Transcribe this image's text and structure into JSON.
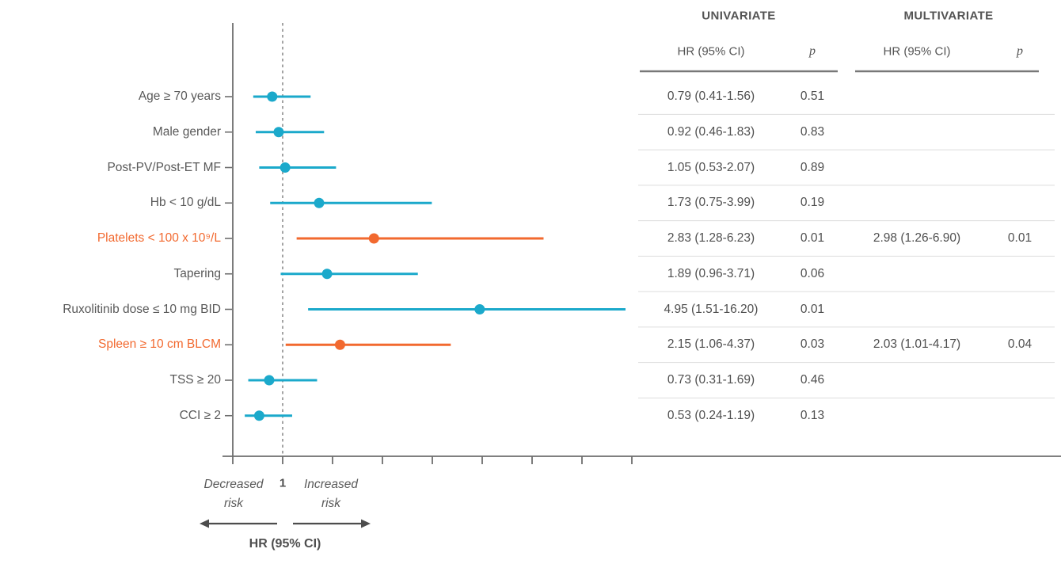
{
  "table": {
    "univariate_title": "UNIVARIATE",
    "multivariate_title": "MULTIVARIATE",
    "hr_ci_header": "HR (95% CI)",
    "p_header": "p"
  },
  "axis": {
    "reference_value": "1",
    "decreased_label": "Decreased risk",
    "increased_label": "Increased risk",
    "xlabel": "HR (95% CI)"
  },
  "colors": {
    "teal": "#1BA9CB",
    "orange": "#F2692F",
    "text_gray": "#595959",
    "axis_gray": "#6E6E6E",
    "separator_gray": "#DDDDDD",
    "header_line_gray": "#787878",
    "arrow_gray": "#4D4D4D",
    "dash_gray": "#999999"
  },
  "chart_data": {
    "type": "forest",
    "xlabel": "HR (95% CI)",
    "xlim": [
      0,
      8.4
    ],
    "x_ticks": [
      0,
      1,
      2,
      3,
      4,
      5,
      6,
      7,
      8
    ],
    "reference_line": 1,
    "grid": false,
    "legend": "none",
    "rows": [
      {
        "label": "Age ≥ 70 years",
        "highlight": false,
        "univariate": {
          "hr": 0.79,
          "ci_low": 0.41,
          "ci_high": 1.56,
          "hr_text": "0.79 (0.41-1.56)",
          "p": "0.51"
        },
        "multivariate": null
      },
      {
        "label": "Male gender",
        "highlight": false,
        "univariate": {
          "hr": 0.92,
          "ci_low": 0.46,
          "ci_high": 1.83,
          "hr_text": "0.92 (0.46-1.83)",
          "p": "0.83"
        },
        "multivariate": null
      },
      {
        "label": "Post-PV/Post-ET MF",
        "highlight": false,
        "univariate": {
          "hr": 1.05,
          "ci_low": 0.53,
          "ci_high": 2.07,
          "hr_text": "1.05 (0.53-2.07)",
          "p": "0.89"
        },
        "multivariate": null
      },
      {
        "label": "Hb < 10 g/dL",
        "highlight": false,
        "univariate": {
          "hr": 1.73,
          "ci_low": 0.75,
          "ci_high": 3.99,
          "hr_text": "1.73 (0.75-3.99)",
          "p": "0.19"
        },
        "multivariate": null
      },
      {
        "label": "Platelets < 100 x 10⁹/L",
        "highlight": true,
        "univariate": {
          "hr": 2.83,
          "ci_low": 1.28,
          "ci_high": 6.23,
          "hr_text": "2.83 (1.28-6.23)",
          "p": "0.01"
        },
        "multivariate": {
          "hr": 2.98,
          "ci_low": 1.26,
          "ci_high": 6.9,
          "hr_text": "2.98 (1.26-6.90)",
          "p": "0.01"
        }
      },
      {
        "label": "Tapering",
        "highlight": false,
        "univariate": {
          "hr": 1.89,
          "ci_low": 0.96,
          "ci_high": 3.71,
          "hr_text": "1.89 (0.96-3.71)",
          "p": "0.06"
        },
        "multivariate": null
      },
      {
        "label": "Ruxolitinib dose ≤ 10 mg BID",
        "highlight": false,
        "univariate": {
          "hr": 4.95,
          "ci_low": 1.51,
          "ci_high": 16.2,
          "hr_text": "4.95 (1.51-16.20)",
          "p": "0.01"
        },
        "multivariate": null
      },
      {
        "label": "Spleen ≥ 10 cm BLCM",
        "highlight": true,
        "univariate": {
          "hr": 2.15,
          "ci_low": 1.06,
          "ci_high": 4.37,
          "hr_text": "2.15 (1.06-4.37)",
          "p": "0.03"
        },
        "multivariate": {
          "hr": 2.03,
          "ci_low": 1.01,
          "ci_high": 4.17,
          "hr_text": "2.03 (1.01-4.17)",
          "p": "0.04"
        }
      },
      {
        "label": "TSS ≥ 20",
        "highlight": false,
        "univariate": {
          "hr": 0.73,
          "ci_low": 0.31,
          "ci_high": 1.69,
          "hr_text": "0.73 (0.31-1.69)",
          "p": "0.46"
        },
        "multivariate": null
      },
      {
        "label": "CCI ≥ 2",
        "highlight": false,
        "univariate": {
          "hr": 0.53,
          "ci_low": 0.24,
          "ci_high": 1.19,
          "hr_text": "0.53 (0.24-1.19)",
          "p": "0.13"
        },
        "multivariate": null
      }
    ]
  }
}
